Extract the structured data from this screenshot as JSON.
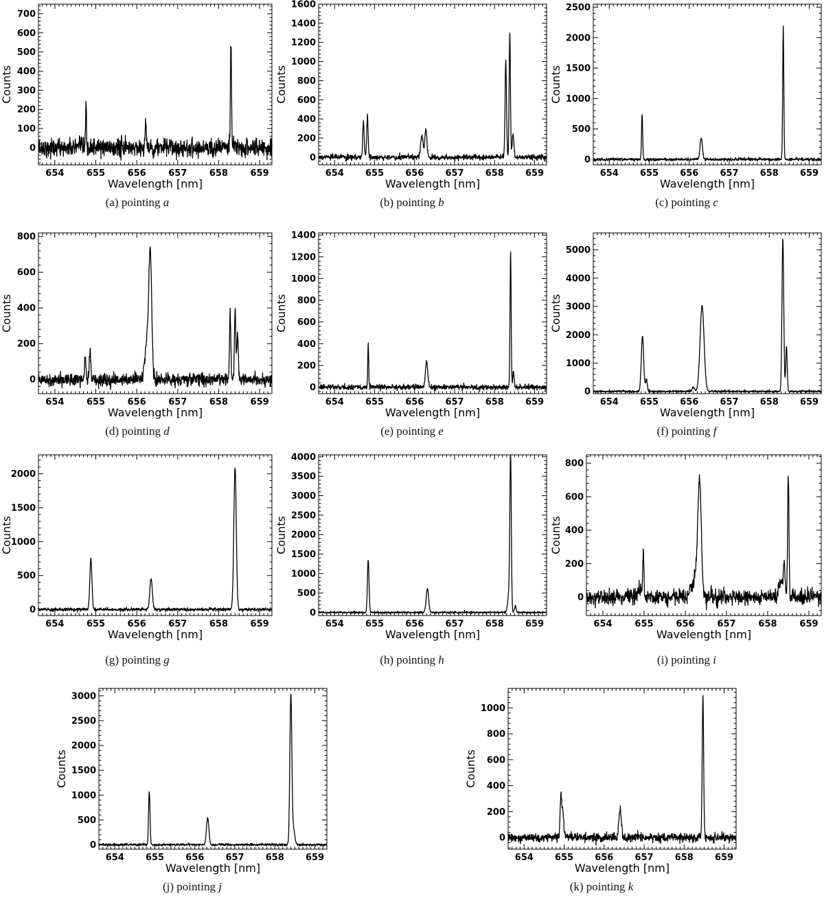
{
  "figure": {
    "title": ""
  },
  "colors": {
    "line": "#000000",
    "frame": "#000000",
    "background": "#ffffff"
  },
  "chart_data": [
    {
      "type": "line",
      "caption_prefix": "(a) pointing",
      "caption_letter": "a",
      "xlabel": "Wavelength [nm]",
      "ylabel": "Counts",
      "xlim": [
        653.6,
        659.3
      ],
      "ylim": [
        -90,
        750
      ],
      "xticks": [
        654,
        655,
        656,
        657,
        658,
        659
      ],
      "yticks": [
        0,
        100,
        200,
        300,
        400,
        500,
        600,
        700
      ],
      "baseline": 0,
      "noise": 24,
      "peaks": [
        {
          "x": 654.76,
          "height": 195,
          "sigma": 0.012
        },
        {
          "x": 656.22,
          "height": 105,
          "sigma": 0.018
        },
        {
          "x": 658.3,
          "height": 530,
          "sigma": 0.014
        }
      ]
    },
    {
      "type": "line",
      "caption_prefix": "(b) pointing",
      "caption_letter": "b",
      "xlabel": "Wavelength [nm]",
      "ylabel": "Counts",
      "xlim": [
        653.6,
        659.3
      ],
      "ylim": [
        -80,
        1600
      ],
      "xticks": [
        654,
        655,
        656,
        657,
        658,
        659
      ],
      "yticks": [
        0,
        200,
        400,
        600,
        800,
        1000,
        1200,
        1400,
        1600
      ],
      "baseline": 0,
      "noise": 14,
      "peaks": [
        {
          "x": 654.72,
          "height": 360,
          "sigma": 0.018
        },
        {
          "x": 654.82,
          "height": 430,
          "sigma": 0.018
        },
        {
          "x": 656.18,
          "height": 230,
          "sigma": 0.028
        },
        {
          "x": 656.28,
          "height": 290,
          "sigma": 0.028
        },
        {
          "x": 658.28,
          "height": 1000,
          "sigma": 0.018
        },
        {
          "x": 658.38,
          "height": 1300,
          "sigma": 0.016
        },
        {
          "x": 658.46,
          "height": 250,
          "sigma": 0.02
        }
      ]
    },
    {
      "type": "line",
      "caption_prefix": "(c) pointing",
      "caption_letter": "c",
      "xlabel": "Wavelength [nm]",
      "ylabel": "Counts",
      "xlim": [
        653.6,
        659.3
      ],
      "ylim": [
        -90,
        2550
      ],
      "xticks": [
        654,
        655,
        656,
        657,
        658,
        659
      ],
      "yticks": [
        0,
        500,
        1000,
        1500,
        2000,
        2500
      ],
      "baseline": 0,
      "noise": 12,
      "peaks": [
        {
          "x": 654.82,
          "height": 740,
          "sigma": 0.014
        },
        {
          "x": 656.3,
          "height": 350,
          "sigma": 0.03
        },
        {
          "x": 658.35,
          "height": 2170,
          "sigma": 0.014
        }
      ]
    },
    {
      "type": "line",
      "caption_prefix": "(d) pointing",
      "caption_letter": "d",
      "xlabel": "Wavelength [nm]",
      "ylabel": "Counts",
      "xlim": [
        653.6,
        659.3
      ],
      "ylim": [
        -80,
        820
      ],
      "xticks": [
        654,
        655,
        656,
        657,
        658,
        659
      ],
      "yticks": [
        0,
        200,
        400,
        600,
        800
      ],
      "baseline": 0,
      "noise": 18,
      "peaks": [
        {
          "x": 654.74,
          "height": 130,
          "sigma": 0.018
        },
        {
          "x": 654.86,
          "height": 160,
          "sigma": 0.018
        },
        {
          "x": 656.25,
          "height": 200,
          "sigma": 0.05
        },
        {
          "x": 656.33,
          "height": 680,
          "sigma": 0.035
        },
        {
          "x": 658.28,
          "height": 380,
          "sigma": 0.016
        },
        {
          "x": 658.4,
          "height": 400,
          "sigma": 0.016
        },
        {
          "x": 658.46,
          "height": 250,
          "sigma": 0.02
        }
      ]
    },
    {
      "type": "line",
      "caption_prefix": "(e) pointing",
      "caption_letter": "e",
      "xlabel": "Wavelength [nm]",
      "ylabel": "Counts",
      "xlim": [
        653.6,
        659.3
      ],
      "ylim": [
        -60,
        1420
      ],
      "xticks": [
        654,
        655,
        656,
        657,
        658,
        659
      ],
      "yticks": [
        0,
        200,
        400,
        600,
        800,
        1000,
        1200,
        1400
      ],
      "baseline": 0,
      "noise": 12,
      "peaks": [
        {
          "x": 654.84,
          "height": 395,
          "sigma": 0.012
        },
        {
          "x": 656.3,
          "height": 230,
          "sigma": 0.03
        },
        {
          "x": 658.4,
          "height": 1250,
          "sigma": 0.014
        },
        {
          "x": 658.47,
          "height": 120,
          "sigma": 0.02
        }
      ]
    },
    {
      "type": "line",
      "caption_prefix": "(f) pointing",
      "caption_letter": "f",
      "xlabel": "Wavelength [nm]",
      "ylabel": "Counts",
      "xlim": [
        653.6,
        659.3
      ],
      "ylim": [
        -80,
        5600
      ],
      "xticks": [
        654,
        655,
        656,
        657,
        658,
        659
      ],
      "yticks": [
        0,
        1000,
        2000,
        3000,
        4000,
        5000
      ],
      "baseline": 0,
      "noise": 18,
      "peaks": [
        {
          "x": 654.83,
          "height": 1950,
          "sigma": 0.03
        },
        {
          "x": 654.93,
          "height": 450,
          "sigma": 0.02
        },
        {
          "x": 656.1,
          "height": 150,
          "sigma": 0.03
        },
        {
          "x": 656.32,
          "height": 3020,
          "sigma": 0.05
        },
        {
          "x": 658.34,
          "height": 5400,
          "sigma": 0.022
        },
        {
          "x": 658.43,
          "height": 1600,
          "sigma": 0.018
        }
      ]
    },
    {
      "type": "line",
      "caption_prefix": "(g) pointing",
      "caption_letter": "g",
      "xlabel": "Wavelength [nm]",
      "ylabel": "Counts",
      "xlim": [
        653.6,
        659.3
      ],
      "ylim": [
        -90,
        2280
      ],
      "xticks": [
        654,
        655,
        656,
        657,
        658,
        659
      ],
      "yticks": [
        0,
        500,
        1000,
        1500,
        2000
      ],
      "baseline": 0,
      "noise": 12,
      "peaks": [
        {
          "x": 654.88,
          "height": 750,
          "sigma": 0.025
        },
        {
          "x": 656.35,
          "height": 460,
          "sigma": 0.03
        },
        {
          "x": 658.4,
          "height": 2100,
          "sigma": 0.03
        }
      ]
    },
    {
      "type": "line",
      "caption_prefix": "(h) pointing",
      "caption_letter": "h",
      "xlabel": "Wavelength [nm]",
      "ylabel": "Counts",
      "xlim": [
        653.6,
        659.3
      ],
      "ylim": [
        -80,
        4050
      ],
      "xticks": [
        654,
        655,
        656,
        657,
        658,
        659
      ],
      "yticks": [
        0,
        500,
        1000,
        1500,
        2000,
        2500,
        3000,
        3500,
        4000
      ],
      "baseline": 0,
      "noise": 12,
      "peaks": [
        {
          "x": 654.84,
          "height": 1350,
          "sigma": 0.02
        },
        {
          "x": 656.32,
          "height": 620,
          "sigma": 0.03
        },
        {
          "x": 658.36,
          "height": 500,
          "sigma": 0.03
        },
        {
          "x": 658.4,
          "height": 3950,
          "sigma": 0.018
        },
        {
          "x": 658.52,
          "height": 180,
          "sigma": 0.02
        }
      ]
    },
    {
      "type": "line",
      "caption_prefix": "(i) pointing",
      "caption_letter": "i",
      "xlabel": "Wavelength [nm]",
      "ylabel": "Counts",
      "xlim": [
        653.6,
        659.3
      ],
      "ylim": [
        -110,
        850
      ],
      "xticks": [
        654,
        655,
        656,
        657,
        658,
        659
      ],
      "yticks": [
        0,
        200,
        400,
        600,
        800
      ],
      "baseline": 0,
      "noise": 22,
      "peaks": [
        {
          "x": 654.88,
          "height": 60,
          "sigma": 0.04
        },
        {
          "x": 654.98,
          "height": 260,
          "sigma": 0.014
        },
        {
          "x": 656.12,
          "height": 60,
          "sigma": 0.04
        },
        {
          "x": 656.28,
          "height": 180,
          "sigma": 0.06
        },
        {
          "x": 656.35,
          "height": 620,
          "sigma": 0.04
        },
        {
          "x": 658.32,
          "height": 100,
          "sigma": 0.05
        },
        {
          "x": 658.4,
          "height": 200,
          "sigma": 0.02
        },
        {
          "x": 658.5,
          "height": 740,
          "sigma": 0.016
        }
      ]
    },
    {
      "type": "line",
      "caption_prefix": "(j) pointing",
      "caption_letter": "j",
      "xlabel": "Wavelength [nm]",
      "ylabel": "Counts",
      "xlim": [
        653.6,
        659.3
      ],
      "ylim": [
        -90,
        3150
      ],
      "xticks": [
        654,
        655,
        656,
        657,
        658,
        659
      ],
      "yticks": [
        0,
        500,
        1000,
        1500,
        2000,
        2500,
        3000
      ],
      "baseline": 0,
      "noise": 12,
      "peaks": [
        {
          "x": 654.86,
          "height": 1080,
          "sigma": 0.018
        },
        {
          "x": 656.32,
          "height": 540,
          "sigma": 0.03
        },
        {
          "x": 658.4,
          "height": 3020,
          "sigma": 0.025
        },
        {
          "x": 658.47,
          "height": 300,
          "sigma": 0.03
        }
      ]
    },
    {
      "type": "line",
      "caption_prefix": "(k) pointing",
      "caption_letter": "k",
      "xlabel": "Wavelength [nm]",
      "ylabel": "Counts",
      "xlim": [
        653.6,
        659.3
      ],
      "ylim": [
        -90,
        1150
      ],
      "xticks": [
        654,
        655,
        656,
        657,
        658,
        659
      ],
      "yticks": [
        0,
        200,
        400,
        600,
        800,
        1000
      ],
      "baseline": 0,
      "noise": 16,
      "peaks": [
        {
          "x": 654.92,
          "height": 330,
          "sigma": 0.02
        },
        {
          "x": 654.97,
          "height": 200,
          "sigma": 0.02
        },
        {
          "x": 656.4,
          "height": 230,
          "sigma": 0.03
        },
        {
          "x": 658.47,
          "height": 1080,
          "sigma": 0.018
        }
      ]
    }
  ]
}
